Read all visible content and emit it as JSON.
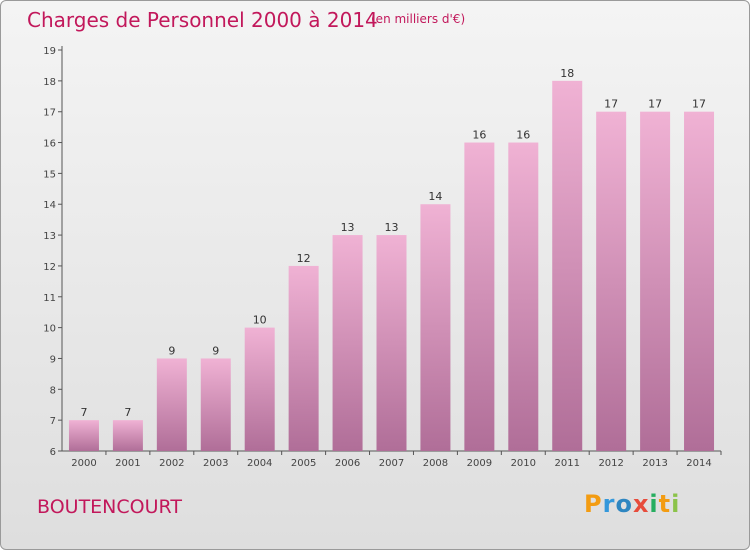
{
  "title": "Charges de Personnel 2000 à 2014",
  "subtitle": "(en milliers d'€)",
  "commune": "BOUTENCOURT",
  "logo": {
    "letters": [
      "P",
      "r",
      "o",
      "x",
      "i",
      "t",
      "i"
    ],
    "colors": [
      "#f39c12",
      "#3498db",
      "#2e86c1",
      "#e74c3c",
      "#27ae60",
      "#f39c12",
      "#8bc34a"
    ]
  },
  "colors": {
    "bar_top": "#f0b2d4",
    "bar_bottom": "#b06e98",
    "title": "#c2185b"
  },
  "chart_data": {
    "type": "bar",
    "categories": [
      "2000",
      "2001",
      "2002",
      "2003",
      "2004",
      "2005",
      "2006",
      "2007",
      "2008",
      "2009",
      "2010",
      "2011",
      "2012",
      "2013",
      "2014"
    ],
    "values": [
      7,
      7,
      9,
      9,
      10,
      12,
      13,
      13,
      14,
      16,
      16,
      18,
      17,
      17,
      17
    ],
    "ylim": [
      6,
      19
    ],
    "yticks": [
      6,
      7,
      8,
      9,
      10,
      11,
      12,
      13,
      14,
      15,
      16,
      17,
      18,
      19
    ],
    "grid": false,
    "title": "Charges de Personnel 2000 à 2014",
    "xlabel": "",
    "ylabel": ""
  }
}
